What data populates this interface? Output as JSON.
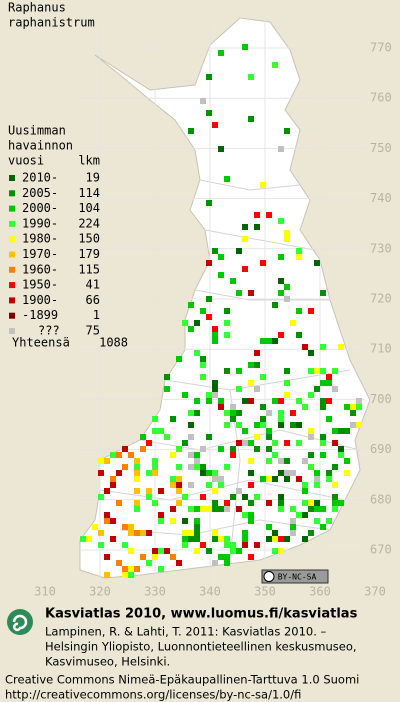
{
  "title": [
    "Raphanus",
    "raphanistrum"
  ],
  "legend": {
    "header": [
      "Uusimman",
      "havainnon",
      "vuosi"
    ],
    "count_header": "lkm",
    "rows": [
      {
        "label": "2010-",
        "count": 19,
        "color": "#006400"
      },
      {
        "label": "2005-",
        "count": 114,
        "color": "#009000"
      },
      {
        "label": "2000-",
        "count": 104,
        "color": "#00c800"
      },
      {
        "label": "1990-",
        "count": 224,
        "color": "#33ff33"
      },
      {
        "label": "1980-",
        "count": 150,
        "color": "#ffff00"
      },
      {
        "label": "1970-",
        "count": 179,
        "color": "#ffc000"
      },
      {
        "label": "1960-",
        "count": 115,
        "color": "#ff7f00"
      },
      {
        "label": "1950-",
        "count": 41,
        "color": "#ff0000"
      },
      {
        "label": "1900-",
        "count": 66,
        "color": "#c00000"
      },
      {
        "label": "-1899",
        "count": 1,
        "color": "#800000"
      },
      {
        "label": "???",
        "count": 75,
        "color": "#c0c0c0"
      }
    ],
    "total_label": "Yhteensä",
    "total": 1088
  },
  "grid": {
    "north": [
      770,
      760,
      750,
      740,
      730,
      720,
      710,
      700,
      690,
      680,
      670
    ],
    "east": [
      310,
      320,
      330,
      340,
      350,
      360,
      370
    ]
  },
  "license_badge": "BY-NC-SA",
  "footer": {
    "title": "Kasviatlas 2010, www.luomus.fi/kasviatlas",
    "citation": [
      "Lampinen, R. & Lahti, T. 2011: Kasviatlas 2010. –",
      "Helsingin Yliopisto, Luonnontieteellinen keskusmuseo,",
      "Kasvimuseo, Helsinki."
    ],
    "license": [
      "Creative Commons Nimeä-Epäkaupallinen-Tarttuva 1.0 Suomi",
      "http://creativecommons.org/licenses/by-nc-sa/1.0/fi"
    ]
  }
}
